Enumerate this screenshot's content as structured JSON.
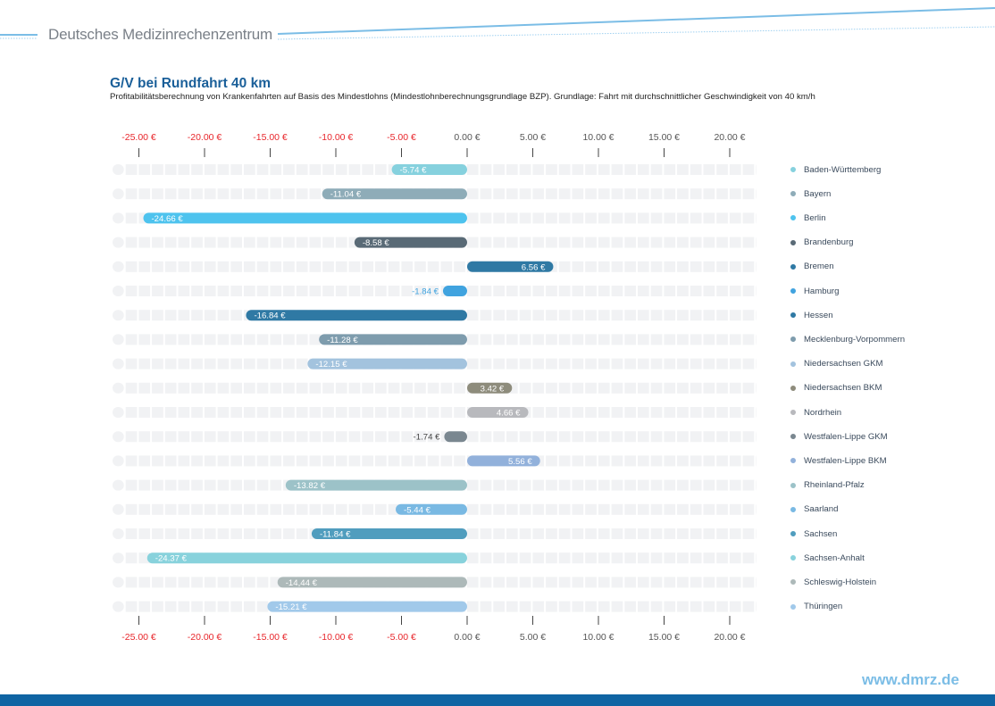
{
  "header": {
    "brand": "Deutsches Medizinrechenzentrum"
  },
  "footer": {
    "url": "www.dmrz.de"
  },
  "colors": {
    "title": "#1a5f99",
    "negative_tick": "#e8262b",
    "positive_tick": "#555555",
    "track": "#f1f2f4",
    "footer_bar": "#0f64a3",
    "header_line": "#7bbde6"
  },
  "chart_data": {
    "type": "bar",
    "orientation": "horizontal",
    "title": "G/V bei Rundfahrt 40 km",
    "subtitle": "Profitabilitätsberechnung von Krankenfahrten auf Basis des Mindestlohns (Mindestlohnberechnungsgrundlage BZP). Grundlage: Fahrt mit durchschnittlicher Geschwindigkeit von 40 km/h",
    "xlabel": "",
    "ylabel": "",
    "xlim": [
      -25,
      20
    ],
    "grid": false,
    "legend_position": "right",
    "ticks": [
      -25,
      -20,
      -15,
      -10,
      -5,
      0,
      5,
      10,
      15,
      20
    ],
    "tick_labels": [
      "-25.00 €",
      "-20.00 €",
      "-15.00 €",
      "-10.00 €",
      "-5.00 €",
      "0.00 €",
      "5.00 €",
      "10.00 €",
      "15.00 €",
      "20.00 €"
    ],
    "categories": [
      "Baden-Württemberg",
      "Bayern",
      "Berlin",
      "Brandenburg",
      "Bremen",
      "Hamburg",
      "Hessen",
      "Mecklenburg-Vorpommern",
      "Niedersachsen GKM",
      "Niedersachsen BKM",
      "Nordrhein",
      "Westfalen-Lippe GKM",
      "Westfalen-Lippe BKM",
      "Rheinland-Pfalz",
      "Saarland",
      "Sachsen",
      "Sachsen-Anhalt",
      "Schleswig-Holstein",
      "Thüringen"
    ],
    "values": [
      -5.74,
      -11.04,
      -24.66,
      -8.58,
      6.56,
      -1.84,
      -16.84,
      -11.28,
      -12.15,
      3.42,
      4.66,
      -1.74,
      5.56,
      -13.82,
      -5.44,
      -11.84,
      -24.37,
      -14.44,
      -15.21
    ],
    "value_labels": [
      "-5.74 €",
      "-11.04 €",
      "-24.66 €",
      "-8.58 €",
      "6.56 €",
      "-1.84 €",
      "-16.84 €",
      "-11.28 €",
      "-12.15 €",
      "3.42 €",
      "4.66 €",
      "-1.74 €",
      "5.56 €",
      "-13.82 €",
      "-5.44 €",
      "-11.84 €",
      "-24.37 €",
      "-14,44 €",
      "-15.21 €"
    ],
    "colors": [
      "#86d1de",
      "#8eacb8",
      "#4ec3ee",
      "#596a76",
      "#2f79a4",
      "#40a3df",
      "#2f79a4",
      "#7e9cad",
      "#a3c3de",
      "#8e8c7c",
      "#b8b9bd",
      "#7a8790",
      "#92b1db",
      "#9cc2c8",
      "#79b9e3",
      "#509dbe",
      "#88d2dc",
      "#adb9b9",
      "#a1c9ea"
    ]
  }
}
